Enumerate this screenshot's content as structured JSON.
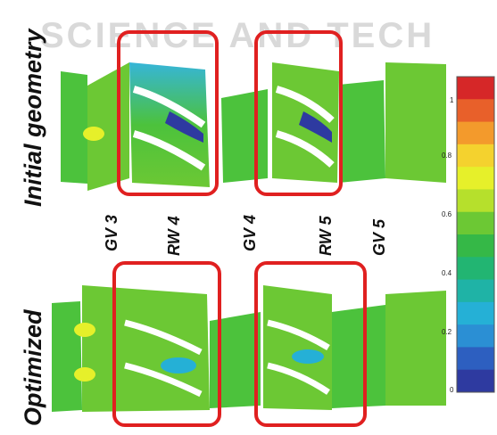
{
  "watermark": "SCIENCE AND TECH",
  "rows": [
    {
      "label": "Initial geometry"
    },
    {
      "label": "Optimized"
    }
  ],
  "blade_labels": [
    "GV 3",
    "RW 4",
    "GV 4",
    "RW 5",
    "GV 5"
  ],
  "colorbar": {
    "ticks": [
      "1",
      "0.8",
      "0.6",
      "0.4",
      "0.2",
      "0"
    ],
    "colors": [
      "#d62728",
      "#e8602a",
      "#f39a2c",
      "#f4d22e",
      "#e6f02a",
      "#b6e02c",
      "#6cc834",
      "#35b847",
      "#22b572",
      "#1fb3a6",
      "#25b0d6",
      "#2b8fd4",
      "#2d5fc0",
      "#2e3aa0"
    ]
  },
  "colors": {
    "highlight_box": "#e02020",
    "flow_green": "#4cc23c"
  }
}
